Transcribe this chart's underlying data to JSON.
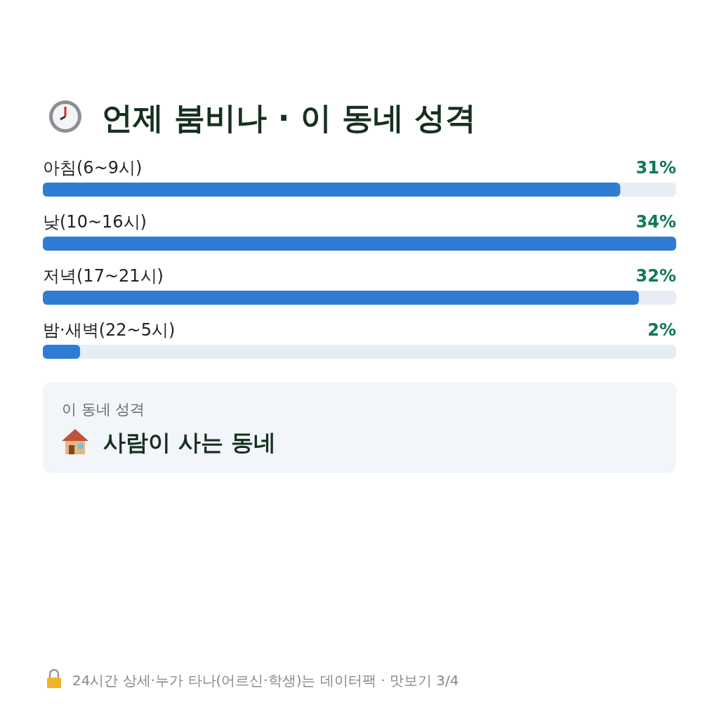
{
  "chart_data": {
    "type": "bar",
    "orientation": "horizontal",
    "title": "언제 붐비나 · 이 동네 성격",
    "categories": [
      "아침(6~9시)",
      "낮(10~16시)",
      "저녁(17~21시)",
      "밤·새벽(22~5시)"
    ],
    "values": [
      31,
      34,
      32,
      2
    ],
    "value_labels": [
      "31%",
      "34%",
      "32%",
      "2%"
    ],
    "color": "#2e7dd2",
    "annotations": [
      "이 동네 성격",
      "사람이 사는 동네",
      "24시간 상세·누가 타나(어르신·학생)는 데이터팩 · 맛보기 3/4"
    ]
  }
}
